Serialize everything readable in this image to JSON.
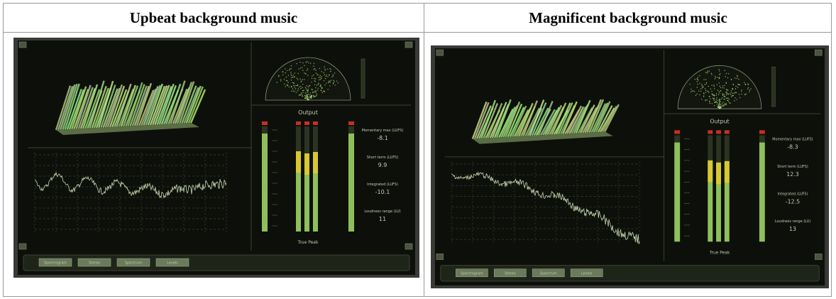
{
  "table": {
    "headers": [
      "Upbeat background music",
      "Magnificent background music"
    ]
  },
  "panels": [
    {
      "title": "Output",
      "meter_caption": "True Peak",
      "readings": [
        {
          "label": "Momentary max (LUFS)",
          "value": "-8.1"
        },
        {
          "label": "Short term (LUFS)",
          "value": "9.9"
        },
        {
          "label": "Integrated (LUFS)",
          "value": "-10.1"
        },
        {
          "label": "Loudness range (LU)",
          "value": "11"
        }
      ],
      "buttons": [
        "Spectrogram",
        "Stereo",
        "Spectrum",
        "Levels"
      ]
    },
    {
      "title": "Output",
      "meter_caption": "True Peak",
      "readings": [
        {
          "label": "Momentary max (LUFS)",
          "value": "-8.3"
        },
        {
          "label": "Short term (LUFS)",
          "value": "12.3"
        },
        {
          "label": "Integrated (LUFS)",
          "value": "-12.5"
        },
        {
          "label": "Loudness range (LU)",
          "value": "13"
        }
      ],
      "buttons": [
        "Spectrogram",
        "Stereo",
        "Spectrum",
        "Levels"
      ]
    }
  ]
}
